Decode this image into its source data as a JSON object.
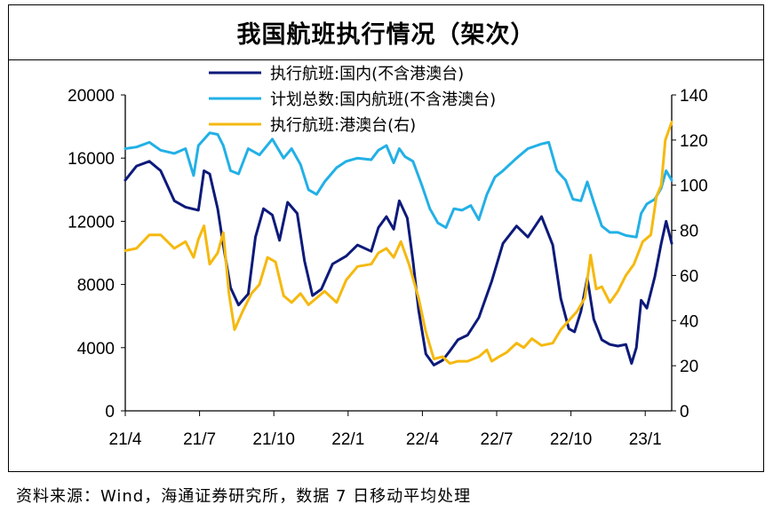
{
  "title": "我国航班执行情况（架次）",
  "source": "资料来源：Wind，海通证券研究所，数据 7 日移动平均处理",
  "chart_data": {
    "type": "line",
    "title": "我国航班执行情况（架次）",
    "x_ticks": [
      "21/4",
      "21/7",
      "21/10",
      "22/1",
      "22/4",
      "22/7",
      "22/10",
      "23/1"
    ],
    "x_range": [
      "2021-04-01",
      "2023-02-10"
    ],
    "left_axis": {
      "min": 0,
      "max": 20000,
      "ticks": [
        "0",
        "4000",
        "8000",
        "12000",
        "16000",
        "20000"
      ]
    },
    "right_axis": {
      "min": 0,
      "max": 140,
      "ticks": [
        "0",
        "20",
        "40",
        "60",
        "80",
        "100",
        "120",
        "140"
      ]
    },
    "grid": false,
    "legend_position": "top",
    "series": [
      {
        "name": "执行航班:国内(不含港澳台)",
        "color": "#0d1a7a",
        "axis": "left",
        "points": [
          [
            "2021-04-01",
            14600
          ],
          [
            "2021-04-15",
            15500
          ],
          [
            "2021-05-01",
            15800
          ],
          [
            "2021-05-15",
            15200
          ],
          [
            "2021-06-01",
            13300
          ],
          [
            "2021-06-15",
            12900
          ],
          [
            "2021-07-01",
            12700
          ],
          [
            "2021-07-08",
            15200
          ],
          [
            "2021-07-15",
            15000
          ],
          [
            "2021-07-25",
            12800
          ],
          [
            "2021-08-01",
            10500
          ],
          [
            "2021-08-10",
            7800
          ],
          [
            "2021-08-20",
            6700
          ],
          [
            "2021-09-01",
            7400
          ],
          [
            "2021-09-10",
            11000
          ],
          [
            "2021-09-20",
            12800
          ],
          [
            "2021-10-01",
            12400
          ],
          [
            "2021-10-10",
            10800
          ],
          [
            "2021-10-20",
            13200
          ],
          [
            "2021-11-01",
            12500
          ],
          [
            "2021-11-10",
            9500
          ],
          [
            "2021-11-20",
            7300
          ],
          [
            "2021-12-01",
            7700
          ],
          [
            "2021-12-15",
            9300
          ],
          [
            "2022-01-01",
            9800
          ],
          [
            "2022-01-15",
            10500
          ],
          [
            "2022-02-01",
            10100
          ],
          [
            "2022-02-10",
            11600
          ],
          [
            "2022-02-20",
            12300
          ],
          [
            "2022-03-01",
            11500
          ],
          [
            "2022-03-08",
            13300
          ],
          [
            "2022-03-18",
            12200
          ],
          [
            "2022-03-25",
            9500
          ],
          [
            "2022-04-01",
            6400
          ],
          [
            "2022-04-10",
            3600
          ],
          [
            "2022-04-20",
            2900
          ],
          [
            "2022-05-01",
            3200
          ],
          [
            "2022-05-10",
            3800
          ],
          [
            "2022-05-20",
            4500
          ],
          [
            "2022-06-01",
            4800
          ],
          [
            "2022-06-15",
            5900
          ],
          [
            "2022-07-01",
            8200
          ],
          [
            "2022-07-15",
            10600
          ],
          [
            "2022-08-01",
            11700
          ],
          [
            "2022-08-15",
            11000
          ],
          [
            "2022-09-01",
            12300
          ],
          [
            "2022-09-15",
            10500
          ],
          [
            "2022-09-25",
            7100
          ],
          [
            "2022-10-05",
            5200
          ],
          [
            "2022-10-12",
            5000
          ],
          [
            "2022-10-20",
            6300
          ],
          [
            "2022-10-28",
            8400
          ],
          [
            "2022-11-05",
            5800
          ],
          [
            "2022-11-15",
            4500
          ],
          [
            "2022-11-25",
            4200
          ],
          [
            "2022-12-05",
            4100
          ],
          [
            "2022-12-15",
            4200
          ],
          [
            "2022-12-22",
            3000
          ],
          [
            "2022-12-28",
            4000
          ],
          [
            "2023-01-03",
            7000
          ],
          [
            "2023-01-10",
            6500
          ],
          [
            "2023-01-20",
            8500
          ],
          [
            "2023-01-28",
            10600
          ],
          [
            "2023-02-03",
            12000
          ],
          [
            "2023-02-10",
            10600
          ]
        ]
      },
      {
        "name": "计划总数:国内航班(不含港澳台)",
        "color": "#22b0e6",
        "axis": "left",
        "points": [
          [
            "2021-04-01",
            16600
          ],
          [
            "2021-04-15",
            16700
          ],
          [
            "2021-05-01",
            17000
          ],
          [
            "2021-05-15",
            16500
          ],
          [
            "2021-06-01",
            16300
          ],
          [
            "2021-06-15",
            16600
          ],
          [
            "2021-06-25",
            14900
          ],
          [
            "2021-07-01",
            16800
          ],
          [
            "2021-07-15",
            17600
          ],
          [
            "2021-07-25",
            17500
          ],
          [
            "2021-08-01",
            16800
          ],
          [
            "2021-08-10",
            15200
          ],
          [
            "2021-08-20",
            15000
          ],
          [
            "2021-09-01",
            16600
          ],
          [
            "2021-09-15",
            16200
          ],
          [
            "2021-10-01",
            17200
          ],
          [
            "2021-10-15",
            16000
          ],
          [
            "2021-10-25",
            16600
          ],
          [
            "2021-11-05",
            15600
          ],
          [
            "2021-11-15",
            14000
          ],
          [
            "2021-11-25",
            13700
          ],
          [
            "2021-12-05",
            14500
          ],
          [
            "2021-12-20",
            15400
          ],
          [
            "2022-01-01",
            15800
          ],
          [
            "2022-01-15",
            16000
          ],
          [
            "2022-02-01",
            15900
          ],
          [
            "2022-02-10",
            16500
          ],
          [
            "2022-02-20",
            16800
          ],
          [
            "2022-03-01",
            15700
          ],
          [
            "2022-03-08",
            16600
          ],
          [
            "2022-03-15",
            16100
          ],
          [
            "2022-03-25",
            15800
          ],
          [
            "2022-04-05",
            14300
          ],
          [
            "2022-04-15",
            12800
          ],
          [
            "2022-04-25",
            11900
          ],
          [
            "2022-05-05",
            11600
          ],
          [
            "2022-05-15",
            12800
          ],
          [
            "2022-05-25",
            12700
          ],
          [
            "2022-06-05",
            13000
          ],
          [
            "2022-06-15",
            12100
          ],
          [
            "2022-06-25",
            13700
          ],
          [
            "2022-07-05",
            14800
          ],
          [
            "2022-07-15",
            15200
          ],
          [
            "2022-08-01",
            16000
          ],
          [
            "2022-08-15",
            16600
          ],
          [
            "2022-09-01",
            16900
          ],
          [
            "2022-09-10",
            17000
          ],
          [
            "2022-09-20",
            15200
          ],
          [
            "2022-10-01",
            14600
          ],
          [
            "2022-10-10",
            13400
          ],
          [
            "2022-10-20",
            13300
          ],
          [
            "2022-10-28",
            14500
          ],
          [
            "2022-11-05",
            13200
          ],
          [
            "2022-11-15",
            11700
          ],
          [
            "2022-11-25",
            11300
          ],
          [
            "2022-12-05",
            11300
          ],
          [
            "2022-12-15",
            11100
          ],
          [
            "2022-12-28",
            11000
          ],
          [
            "2023-01-03",
            12500
          ],
          [
            "2023-01-10",
            13100
          ],
          [
            "2023-01-20",
            13400
          ],
          [
            "2023-01-28",
            14100
          ],
          [
            "2023-02-03",
            15200
          ],
          [
            "2023-02-10",
            14600
          ]
        ]
      },
      {
        "name": "执行航班:港澳台(右)",
        "color": "#f5b90f",
        "axis": "right",
        "points": [
          [
            "2021-04-01",
            71
          ],
          [
            "2021-04-15",
            72
          ],
          [
            "2021-05-01",
            78
          ],
          [
            "2021-05-15",
            78
          ],
          [
            "2021-06-01",
            72
          ],
          [
            "2021-06-15",
            75
          ],
          [
            "2021-06-25",
            68
          ],
          [
            "2021-07-01",
            76
          ],
          [
            "2021-07-08",
            82
          ],
          [
            "2021-07-15",
            65
          ],
          [
            "2021-07-25",
            70
          ],
          [
            "2021-08-01",
            79
          ],
          [
            "2021-08-08",
            52
          ],
          [
            "2021-08-15",
            36
          ],
          [
            "2021-08-25",
            44
          ],
          [
            "2021-09-05",
            52
          ],
          [
            "2021-09-15",
            56
          ],
          [
            "2021-09-25",
            68
          ],
          [
            "2021-10-05",
            66
          ],
          [
            "2021-10-15",
            51
          ],
          [
            "2021-10-25",
            48
          ],
          [
            "2021-11-05",
            52
          ],
          [
            "2021-11-15",
            47
          ],
          [
            "2021-11-25",
            50
          ],
          [
            "2021-12-05",
            53
          ],
          [
            "2021-12-20",
            48
          ],
          [
            "2022-01-01",
            58
          ],
          [
            "2022-01-15",
            64
          ],
          [
            "2022-02-01",
            65
          ],
          [
            "2022-02-10",
            70
          ],
          [
            "2022-02-20",
            72
          ],
          [
            "2022-03-01",
            68
          ],
          [
            "2022-03-10",
            75
          ],
          [
            "2022-03-20",
            65
          ],
          [
            "2022-04-01",
            50
          ],
          [
            "2022-04-10",
            35
          ],
          [
            "2022-04-20",
            23
          ],
          [
            "2022-05-01",
            24
          ],
          [
            "2022-05-10",
            21
          ],
          [
            "2022-05-20",
            22
          ],
          [
            "2022-06-01",
            22
          ],
          [
            "2022-06-15",
            24
          ],
          [
            "2022-06-25",
            27
          ],
          [
            "2022-07-01",
            22
          ],
          [
            "2022-07-10",
            24
          ],
          [
            "2022-07-20",
            26
          ],
          [
            "2022-08-01",
            30
          ],
          [
            "2022-08-10",
            28
          ],
          [
            "2022-08-20",
            32
          ],
          [
            "2022-09-01",
            29
          ],
          [
            "2022-09-15",
            30
          ],
          [
            "2022-09-25",
            36
          ],
          [
            "2022-10-05",
            40
          ],
          [
            "2022-10-15",
            44
          ],
          [
            "2022-10-25",
            50
          ],
          [
            "2022-11-01",
            69
          ],
          [
            "2022-11-08",
            54
          ],
          [
            "2022-11-15",
            55
          ],
          [
            "2022-11-25",
            48
          ],
          [
            "2022-12-05",
            53
          ],
          [
            "2022-12-15",
            60
          ],
          [
            "2022-12-25",
            65
          ],
          [
            "2023-01-05",
            75
          ],
          [
            "2023-01-15",
            78
          ],
          [
            "2023-01-22",
            95
          ],
          [
            "2023-01-28",
            100
          ],
          [
            "2023-02-02",
            120
          ],
          [
            "2023-02-06",
            124
          ],
          [
            "2023-02-10",
            128
          ]
        ]
      }
    ]
  }
}
